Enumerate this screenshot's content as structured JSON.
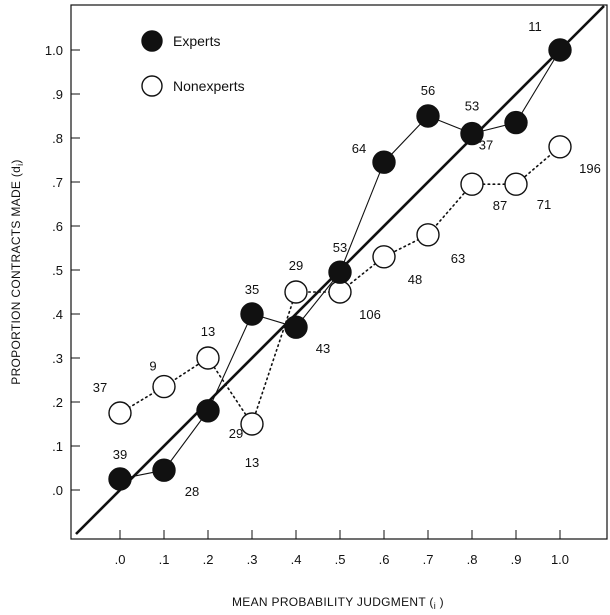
{
  "chart_data": {
    "type": "line",
    "title": "",
    "xlabel": "MEAN PROBABILITY JUDGMENT (",
    "xlabel_sub": "i",
    "xlabel_tail": " )",
    "ylabel": "PROPORTION CONTRACTS MADE (d",
    "ylabel_sub": "i",
    "ylabel_tail": ")",
    "xlim": [
      -0.1,
      1.1
    ],
    "ylim": [
      -0.1,
      1.1
    ],
    "x_ticks": [
      {
        "value": 0.0,
        "label": ".0"
      },
      {
        "value": 0.1,
        "label": ".1"
      },
      {
        "value": 0.2,
        "label": ".2"
      },
      {
        "value": 0.3,
        "label": ".3"
      },
      {
        "value": 0.4,
        "label": ".4"
      },
      {
        "value": 0.5,
        "label": ".5"
      },
      {
        "value": 0.6,
        "label": ".6"
      },
      {
        "value": 0.7,
        "label": ".7"
      },
      {
        "value": 0.8,
        "label": ".8"
      },
      {
        "value": 0.9,
        "label": ".9"
      },
      {
        "value": 1.0,
        "label": "1.0"
      }
    ],
    "y_ticks": [
      {
        "value": 0.0,
        "label": ".0"
      },
      {
        "value": 0.1,
        "label": ".1"
      },
      {
        "value": 0.2,
        "label": ".2"
      },
      {
        "value": 0.3,
        "label": ".3"
      },
      {
        "value": 0.4,
        "label": ".4"
      },
      {
        "value": 0.5,
        "label": ".5"
      },
      {
        "value": 0.6,
        "label": ".6"
      },
      {
        "value": 0.7,
        "label": ".7"
      },
      {
        "value": 0.8,
        "label": ".8"
      },
      {
        "value": 0.9,
        "label": ".9"
      },
      {
        "value": 1.0,
        "label": "1.0"
      }
    ],
    "grid": false,
    "legend": "top-left",
    "reference_line": {
      "from": [
        -0.1,
        -0.1
      ],
      "to": [
        1.1,
        1.1
      ]
    },
    "series": [
      {
        "name": "Experts",
        "marker": "filled-circle",
        "line": "solid-thin",
        "points": [
          {
            "x": 0.0,
            "y": 0.025,
            "label": "39"
          },
          {
            "x": 0.1,
            "y": 0.045,
            "label": "28"
          },
          {
            "x": 0.2,
            "y": 0.18,
            "label": "29"
          },
          {
            "x": 0.3,
            "y": 0.4,
            "label": "35"
          },
          {
            "x": 0.4,
            "y": 0.37,
            "label": "43"
          },
          {
            "x": 0.5,
            "y": 0.495,
            "label": "53"
          },
          {
            "x": 0.6,
            "y": 0.745,
            "label": "64"
          },
          {
            "x": 0.7,
            "y": 0.85,
            "label": "56"
          },
          {
            "x": 0.8,
            "y": 0.81,
            "label": "53"
          },
          {
            "x": 0.9,
            "y": 0.835,
            "label": "37"
          },
          {
            "x": 1.0,
            "y": 1.0,
            "label": "11"
          }
        ]
      },
      {
        "name": "Nonexperts",
        "marker": "open-circle",
        "line": "dotted",
        "points": [
          {
            "x": 0.0,
            "y": 0.175,
            "label": "37"
          },
          {
            "x": 0.1,
            "y": 0.235,
            "label": "9"
          },
          {
            "x": 0.2,
            "y": 0.3,
            "label": "13"
          },
          {
            "x": 0.3,
            "y": 0.15,
            "label": "13"
          },
          {
            "x": 0.4,
            "y": 0.45,
            "label": "29"
          },
          {
            "x": 0.5,
            "y": 0.45,
            "label": "106"
          },
          {
            "x": 0.6,
            "y": 0.53,
            "label": "48"
          },
          {
            "x": 0.7,
            "y": 0.58,
            "label": "63"
          },
          {
            "x": 0.8,
            "y": 0.695,
            "label": "87"
          },
          {
            "x": 0.9,
            "y": 0.695,
            "label": "71"
          },
          {
            "x": 1.0,
            "y": 0.78,
            "label": "196"
          }
        ]
      }
    ]
  }
}
